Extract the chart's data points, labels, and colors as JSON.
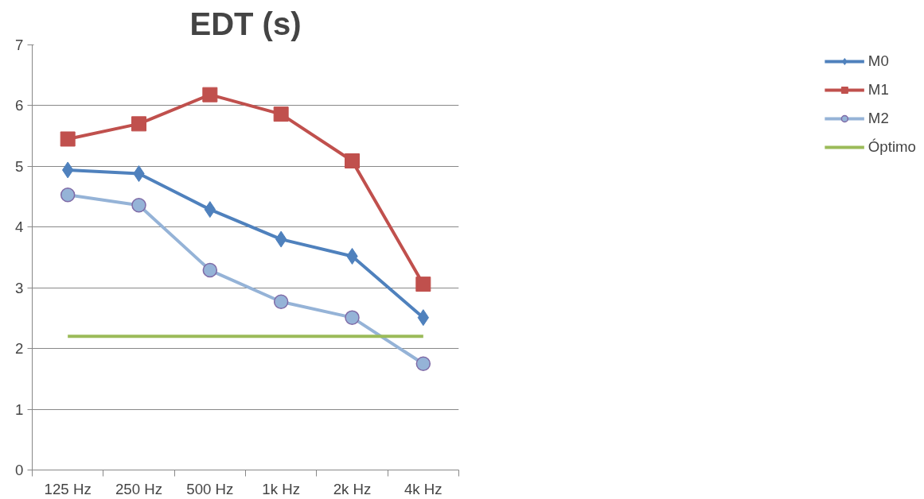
{
  "chart_data": {
    "type": "line",
    "title": "EDT (s)",
    "categories": [
      "125 Hz",
      "250 Hz",
      "500 Hz",
      "1k Hz",
      "2k Hz",
      "4k Hz"
    ],
    "series": [
      {
        "name": "M0",
        "color": "#4f81bd",
        "marker": "diamond",
        "values": [
          4.94,
          4.88,
          4.29,
          3.8,
          3.52,
          2.51
        ]
      },
      {
        "name": "M1",
        "color": "#c0504d",
        "marker": "square",
        "values": [
          5.45,
          5.7,
          6.18,
          5.86,
          5.09,
          3.06
        ]
      },
      {
        "name": "M2",
        "color": "#95b3d7",
        "marker": "circle",
        "values": [
          4.53,
          4.36,
          3.29,
          2.77,
          2.51,
          1.75
        ]
      },
      {
        "name": "Óptimo",
        "color": "#9bbb59",
        "marker": "none",
        "values": [
          2.2,
          2.2,
          2.2,
          2.2,
          2.2,
          2.2
        ]
      }
    ],
    "ylim": [
      0,
      7
    ],
    "yticks": [
      0,
      1,
      2,
      3,
      4,
      5,
      6,
      7
    ],
    "grid": "y",
    "legend": "right"
  }
}
